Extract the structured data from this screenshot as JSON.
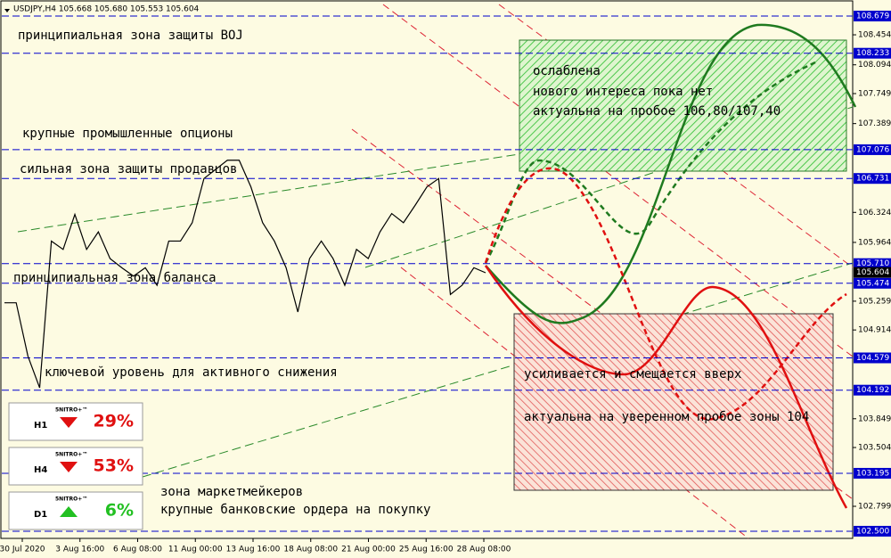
{
  "chart_data": {
    "type": "line",
    "title": "USDJPY,H4  105.668 105.680 105.553 105.604",
    "time_labels": [
      "30 Jul 2020",
      "3 Aug 16:00",
      "6 Aug 08:00",
      "11 Aug 00:00",
      "13 Aug 16:00",
      "18 Aug 08:00",
      "21 Aug 00:00",
      "25 Aug 16:00",
      "28 Aug 08:00"
    ],
    "values": [
      105.24,
      105.24,
      104.6,
      104.22,
      105.98,
      105.88,
      106.3,
      105.88,
      106.09,
      105.77,
      105.66,
      105.56,
      105.66,
      105.45,
      105.98,
      105.98,
      106.2,
      106.73,
      106.84,
      106.95,
      106.95,
      106.63,
      106.2,
      105.98,
      105.66,
      105.13,
      105.77,
      105.98,
      105.77,
      105.45,
      105.88,
      105.77,
      106.09,
      106.31,
      106.2,
      106.41,
      106.63,
      106.73,
      105.34,
      105.45,
      105.66,
      105.6
    ],
    "color": "#000000",
    "ylim": [
      102.414,
      108.85
    ],
    "yticks": [
      108.454,
      108.094,
      107.749,
      107.389,
      106.324,
      105.964,
      105.259,
      104.914,
      103.849,
      103.504,
      102.799
    ],
    "levels": [
      108.679,
      108.233,
      107.076,
      106.731,
      {
        "value": 105.71,
        "label": "105.710"
      },
      105.474,
      104.579,
      104.192,
      103.195,
      {
        "value": 102.5,
        "label": "102.500"
      }
    ],
    "level_color": "#0000cc",
    "current_price": 105.604,
    "annotations": [
      "принципиальная зона защиты BOJ",
      "крупные промышленные опционы",
      "сильная зона защиты продавцов",
      "принципиальная зона баланса",
      "ключевой уровень для активного снижения",
      "зона маркетмейкеров",
      "крупные банковские ордера на покупку",
      "ослаблена",
      "нового интереса пока нет",
      "актуальна на пробое 106,80/107,40",
      "усиливается и смещается вверх",
      "актуальна на уверенном пробое зоны 104"
    ],
    "signals": [
      {
        "brand": "5NITRO+™",
        "timeframe": "H1",
        "value": 29,
        "label": "29%",
        "direction": "down"
      },
      {
        "brand": "5NITRO+™",
        "timeframe": "H4",
        "value": 53,
        "label": "53%",
        "direction": "down"
      },
      {
        "brand": "5NITRO+™",
        "timeframe": "D1",
        "value": 6,
        "label": "6%",
        "direction": "up"
      }
    ]
  }
}
